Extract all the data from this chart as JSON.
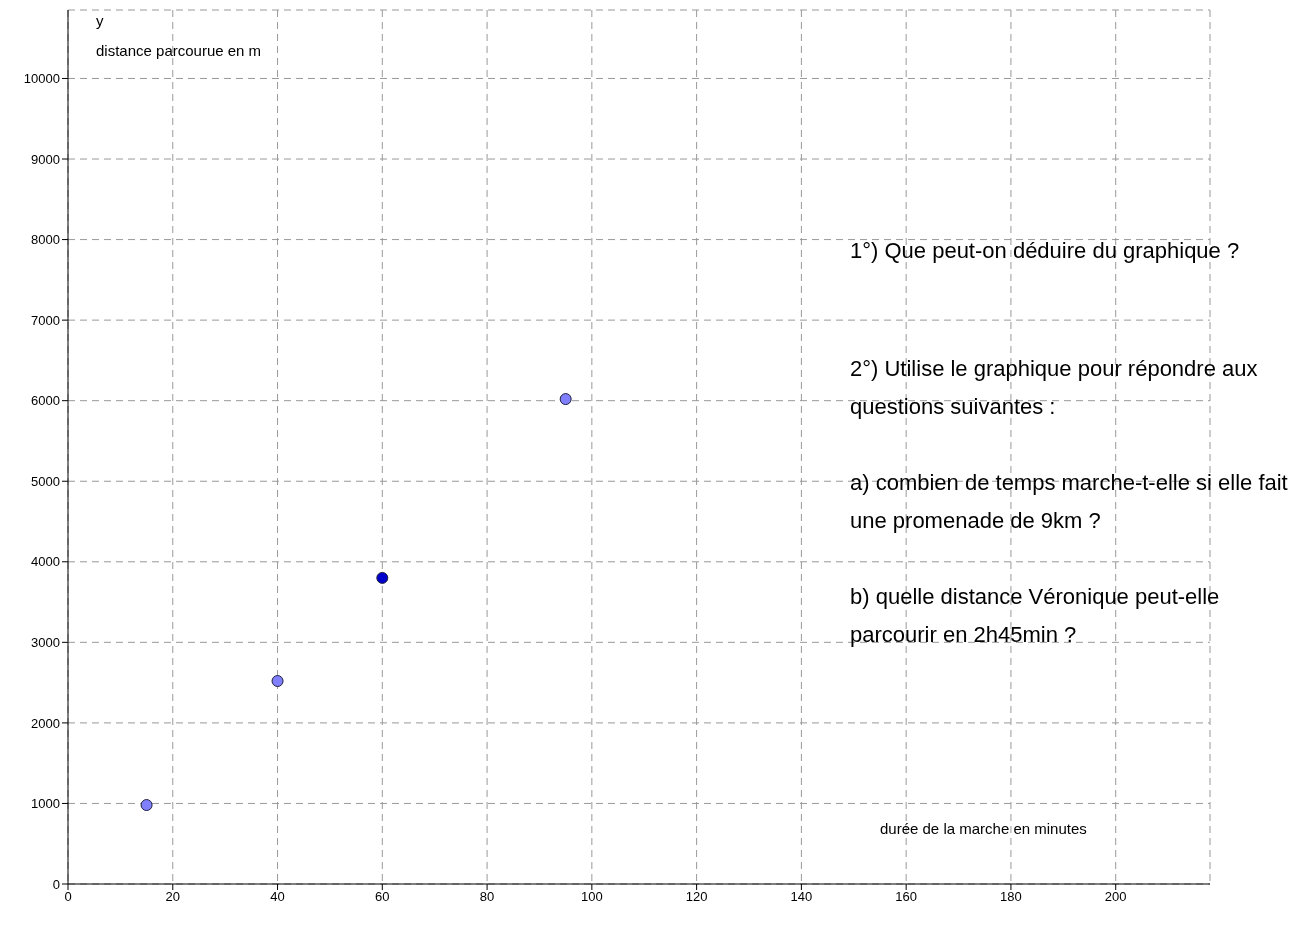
{
  "chart_data": {
    "type": "scatter",
    "xlabel": "durée de la marche en minutes",
    "ylabel": "distance parcourue en m",
    "x": [
      15,
      40,
      60,
      95
    ],
    "values": [
      980,
      2520,
      3800,
      6020
    ],
    "colors": [
      "#8080ff",
      "#8080ff",
      "#0000cc",
      "#8080ff"
    ],
    "xlim": [
      0,
      218
    ],
    "ylim": [
      0,
      10850
    ],
    "xticks": [
      0,
      20,
      40,
      60,
      80,
      100,
      120,
      140,
      160,
      180,
      200
    ],
    "yticks": [
      0,
      1000,
      2000,
      3000,
      4000,
      5000,
      6000,
      7000,
      8000,
      9000,
      10000
    ],
    "grid": true,
    "marker": "circle",
    "annotations": [
      "y",
      "1°) Que peut-on déduire du graphique ?",
      "2°) Utilise le graphique pour répondre aux questions suivantes :",
      "a) combien de temps marche-t-elle si elle fait une promenade de 9km ?",
      "b) quelle distance Véronique peut-elle parcourir en 2h45min ?"
    ]
  }
}
